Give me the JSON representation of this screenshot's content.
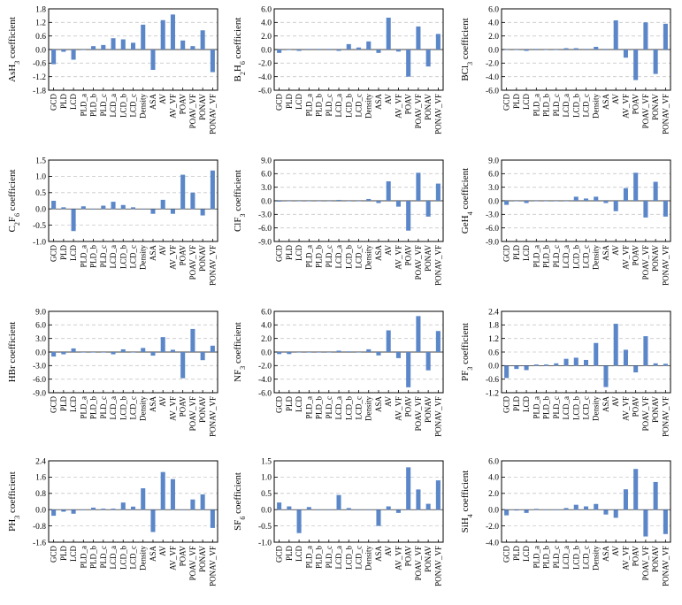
{
  "colors": {
    "bar": "#5b87c9",
    "grid": "#c8c8c8"
  },
  "chart_data": [
    {
      "type": "bar",
      "ylabel": "AsH",
      "ylabel_sub": "3",
      "ylabel_post": " coefficient",
      "ylim": [
        -1.8,
        1.8
      ],
      "yticks": [
        "1.8",
        "1.2",
        "0.6",
        "0.0",
        "-0.6",
        "-1.2",
        "-1.8"
      ],
      "categories": [
        "GCD",
        "PLD",
        "LCD",
        "PLD_a",
        "PLD_b",
        "PLD_c",
        "LCD_a",
        "LCD_b",
        "LCD_c",
        "Density",
        "ASA",
        "AV",
        "AV_VF",
        "POAV",
        "POAV_VF",
        "PONAV",
        "PONAV_VF"
      ],
      "values": [
        -0.65,
        -0.1,
        -0.45,
        0.0,
        0.15,
        0.2,
        0.5,
        0.45,
        0.3,
        1.1,
        -0.9,
        1.3,
        1.55,
        0.4,
        0.15,
        0.85,
        -1.0
      ]
    },
    {
      "type": "bar",
      "ylabel": "B",
      "ylabel_sub": "2",
      "ylabel_post": "H",
      "ylabel_sub2": "6",
      "ylabel_post2": " coefficient",
      "ylim": [
        -6.0,
        6.0
      ],
      "yticks": [
        "6.0",
        "4.0",
        "2.0",
        "0.0",
        "-2.0",
        "-4.0",
        "-6.0"
      ],
      "categories": [
        "GCD",
        "PLD",
        "LCD",
        "PLD_a",
        "PLD_b",
        "PLD_c",
        "LCD_a",
        "LCD_b",
        "LCD_c",
        "Density",
        "ASA",
        "AV",
        "AV_VF",
        "POAV",
        "POAV_VF",
        "PONAV",
        "PONAV_VF"
      ],
      "values": [
        -0.5,
        0.0,
        -0.2,
        0.1,
        0.1,
        0.1,
        -0.2,
        0.8,
        0.3,
        1.2,
        -0.5,
        4.7,
        -0.3,
        -4.0,
        3.4,
        -2.5,
        2.3
      ]
    },
    {
      "type": "bar",
      "ylabel": "BCl",
      "ylabel_sub": "3",
      "ylabel_post": " coefficient",
      "ylim": [
        -6.0,
        6.0
      ],
      "yticks": [
        "6.0",
        "4.0",
        "2.0",
        "0.0",
        "-2.0",
        "-4.0",
        "-6.0"
      ],
      "categories": [
        "GCD",
        "PLD",
        "LCD",
        "PLD_a",
        "PLD_b",
        "PLD_c",
        "LCD_a",
        "LCD_b",
        "LCD_c",
        "Density",
        "ASA",
        "AV",
        "AV_VF",
        "POAV",
        "POAV_VF",
        "PONAV",
        "PONAV_VF"
      ],
      "values": [
        0.0,
        0.0,
        -0.2,
        0.1,
        0.0,
        0.0,
        0.2,
        0.2,
        0.1,
        0.4,
        0.1,
        4.3,
        -1.2,
        -4.5,
        4.0,
        -3.6,
        3.8
      ]
    },
    {
      "type": "bar",
      "ylabel": "C",
      "ylabel_sub": "2",
      "ylabel_post": "F",
      "ylabel_sub2": "6",
      "ylabel_post2": " coefficient",
      "ylim": [
        -1.0,
        1.5
      ],
      "yticks": [
        "1.5",
        "1.0",
        "0.5",
        "0.0",
        "-0.5",
        "-1.0"
      ],
      "categories": [
        "GCD",
        "PLD",
        "LCD",
        "PLD_a",
        "PLD_b",
        "PLD_c",
        "LCD_a",
        "LCD_b",
        "LCD_c",
        "Density",
        "ASA",
        "AV",
        "AV_VF",
        "POAV",
        "POAV_VF",
        "PONAV",
        "PONAV_VF"
      ],
      "values": [
        0.25,
        0.05,
        -0.68,
        0.08,
        0.0,
        0.1,
        0.22,
        0.12,
        0.05,
        0.0,
        -0.15,
        0.28,
        -0.15,
        1.05,
        0.5,
        -0.2,
        1.18
      ]
    },
    {
      "type": "bar",
      "ylabel": "ClF",
      "ylabel_sub": "3",
      "ylabel_post": " coefficient",
      "ylim": [
        -9.0,
        9.0
      ],
      "yticks": [
        "9.0",
        "6.0",
        "3.0",
        "0.0",
        "-3.0",
        "-6.0",
        "-9.0"
      ],
      "categories": [
        "GCD",
        "PLD",
        "LCD",
        "PLD_a",
        "PLD_b",
        "PLD_c",
        "LCD_a",
        "LCD_b",
        "LCD_c",
        "Density",
        "ASA",
        "AV",
        "AV_VF",
        "POAV",
        "POAV_VF",
        "PONAV",
        "PONAV_VF"
      ],
      "values": [
        -0.2,
        0.0,
        0.0,
        0.0,
        0.0,
        0.0,
        0.2,
        0.0,
        0.0,
        0.4,
        -0.5,
        4.3,
        -1.3,
        -6.6,
        6.2,
        -3.5,
        3.8
      ]
    },
    {
      "type": "bar",
      "ylabel": "GeH",
      "ylabel_sub": "4",
      "ylabel_post": " coefficient",
      "ylim": [
        -9.0,
        9.0
      ],
      "yticks": [
        "9.0",
        "6.0",
        "3.0",
        "0.0",
        "-3.0",
        "-6.0",
        "-9.0"
      ],
      "categories": [
        "GCD",
        "PLD",
        "LCD",
        "PLD_a",
        "PLD_b",
        "PLD_c",
        "LCD_a",
        "LCD_b",
        "LCD_c",
        "Density",
        "ASA",
        "AV",
        "AV_VF",
        "POAV",
        "POAV_VF",
        "PONAV",
        "PONAV_VF"
      ],
      "values": [
        -0.9,
        0.0,
        -0.5,
        0.0,
        0.0,
        0.0,
        0.0,
        0.9,
        0.5,
        0.9,
        -0.5,
        -2.3,
        2.8,
        6.2,
        -3.7,
        4.2,
        -3.5
      ]
    },
    {
      "type": "bar",
      "ylabel": "HBr",
      "ylabel_sub": "",
      "ylabel_post": " coefficient",
      "ylim": [
        -9.0,
        9.0
      ],
      "yticks": [
        "9.0",
        "6.0",
        "3.0",
        "0.0",
        "-3.0",
        "-6.0",
        "-9.0"
      ],
      "categories": [
        "GCD",
        "PLD",
        "LCD",
        "PLD_a",
        "PLD_b",
        "PLD_c",
        "LCD_a",
        "LCD_b",
        "LCD_c",
        "Density",
        "ASA",
        "AV",
        "AV_VF",
        "POAV",
        "POAV_VF",
        "PONAV",
        "PONAV_VF"
      ],
      "values": [
        -1.0,
        -0.5,
        0.8,
        0.0,
        0.0,
        0.0,
        -0.5,
        0.6,
        0.0,
        0.9,
        -0.8,
        3.3,
        0.5,
        -5.8,
        5.1,
        -1.8,
        1.4
      ]
    },
    {
      "type": "bar",
      "ylabel": "NF",
      "ylabel_sub": "3",
      "ylabel_post": " coefficient",
      "ylim": [
        -6.0,
        6.0
      ],
      "yticks": [
        "6.0",
        "4.0",
        "2.0",
        "0.0",
        "-2.0",
        "-4.0",
        "-6.0"
      ],
      "categories": [
        "GCD",
        "PLD",
        "LCD",
        "PLD_a",
        "PLD_b",
        "PLD_c",
        "LCD_a",
        "LCD_b",
        "LCD_c",
        "Density",
        "ASA",
        "AV",
        "AV_VF",
        "POAV",
        "POAV_VF",
        "PONAV",
        "PONAV_VF"
      ],
      "values": [
        -0.3,
        -0.3,
        0.0,
        0.0,
        0.0,
        0.0,
        0.2,
        0.1,
        0.0,
        0.4,
        -0.5,
        3.2,
        -0.9,
        -5.2,
        5.3,
        -2.7,
        3.1
      ]
    },
    {
      "type": "bar",
      "ylabel": "PF",
      "ylabel_sub": "3",
      "ylabel_post": " coefficient",
      "ylim": [
        -1.2,
        2.4
      ],
      "yticks": [
        "2.4",
        "1.8",
        "1.2",
        "0.6",
        "0.0",
        "-0.6",
        "-1.2"
      ],
      "categories": [
        "GCD",
        "PLD",
        "LCD",
        "PLD_a",
        "PLD_b",
        "PLD_c",
        "LCD_a",
        "LCD_b",
        "LCD_c",
        "Density",
        "ASA",
        "AV",
        "AV_VF",
        "POAV",
        "POAV_VF",
        "PONAV",
        "PONAV_VF"
      ],
      "values": [
        -0.55,
        -0.15,
        -0.2,
        0.05,
        0.05,
        0.1,
        0.3,
        0.35,
        0.25,
        1.0,
        -0.95,
        1.85,
        0.7,
        -0.3,
        1.3,
        0.1,
        0.08
      ]
    },
    {
      "type": "bar",
      "ylabel": "PH",
      "ylabel_sub": "3",
      "ylabel_post": " coefficient",
      "ylim": [
        -1.6,
        2.4
      ],
      "yticks": [
        "2.4",
        "1.6",
        "0.8",
        "0.0",
        "-0.8",
        "-1.6"
      ],
      "categories": [
        "GCD",
        "PLD",
        "LCD",
        "PLD_a",
        "PLD_b",
        "PLD_c",
        "LCD_a",
        "LCD_b",
        "LCD_c",
        "Density",
        "ASA",
        "AV",
        "AV_VF",
        "POAV",
        "POAV_VF",
        "PONAV",
        "PONAV_VF"
      ],
      "values": [
        -0.3,
        -0.1,
        -0.2,
        0.0,
        0.1,
        0.05,
        0.05,
        0.35,
        0.15,
        1.05,
        -1.1,
        1.85,
        1.5,
        0.0,
        0.5,
        0.75,
        -0.9
      ]
    },
    {
      "type": "bar",
      "ylabel": "SF",
      "ylabel_sub": "6",
      "ylabel_post": " coefficient",
      "ylim": [
        -1.0,
        1.5
      ],
      "yticks": [
        "1.5",
        "1.0",
        "0.5",
        "0.0",
        "-0.5",
        "-1.0"
      ],
      "categories": [
        "GCD",
        "PLD",
        "LCD",
        "PLD_a",
        "PLD_b",
        "PLD_c",
        "LCD_a",
        "LCD_b",
        "LCD_c",
        "Density",
        "ASA",
        "AV",
        "AV_VF",
        "POAV",
        "POAV_VF",
        "PONAV",
        "PONAV_VF"
      ],
      "values": [
        0.22,
        0.1,
        -0.72,
        0.08,
        0.0,
        0.0,
        0.45,
        0.05,
        0.0,
        0.0,
        -0.5,
        0.1,
        -0.1,
        1.3,
        0.62,
        0.18,
        0.9
      ]
    },
    {
      "type": "bar",
      "ylabel": "SiH",
      "ylabel_sub": "4",
      "ylabel_post": " coefficient",
      "ylim": [
        -4.0,
        6.0
      ],
      "yticks": [
        "6.0",
        "4.0",
        "2.0",
        "0.0",
        "-2.0",
        "-4.0"
      ],
      "categories": [
        "GCD",
        "PLD",
        "LCD",
        "PLD_a",
        "PLD_b",
        "PLD_c",
        "LCD_a",
        "LCD_b",
        "LCD_c",
        "Density",
        "ASA",
        "AV",
        "AV_VF",
        "POAV",
        "POAV_VF",
        "PONAV",
        "PONAV_VF"
      ],
      "values": [
        -0.7,
        -0.1,
        -0.4,
        0.1,
        0.0,
        0.0,
        0.2,
        0.6,
        0.4,
        0.7,
        -0.6,
        -1.0,
        2.5,
        5.0,
        -3.3,
        3.4,
        -3.0
      ]
    }
  ]
}
